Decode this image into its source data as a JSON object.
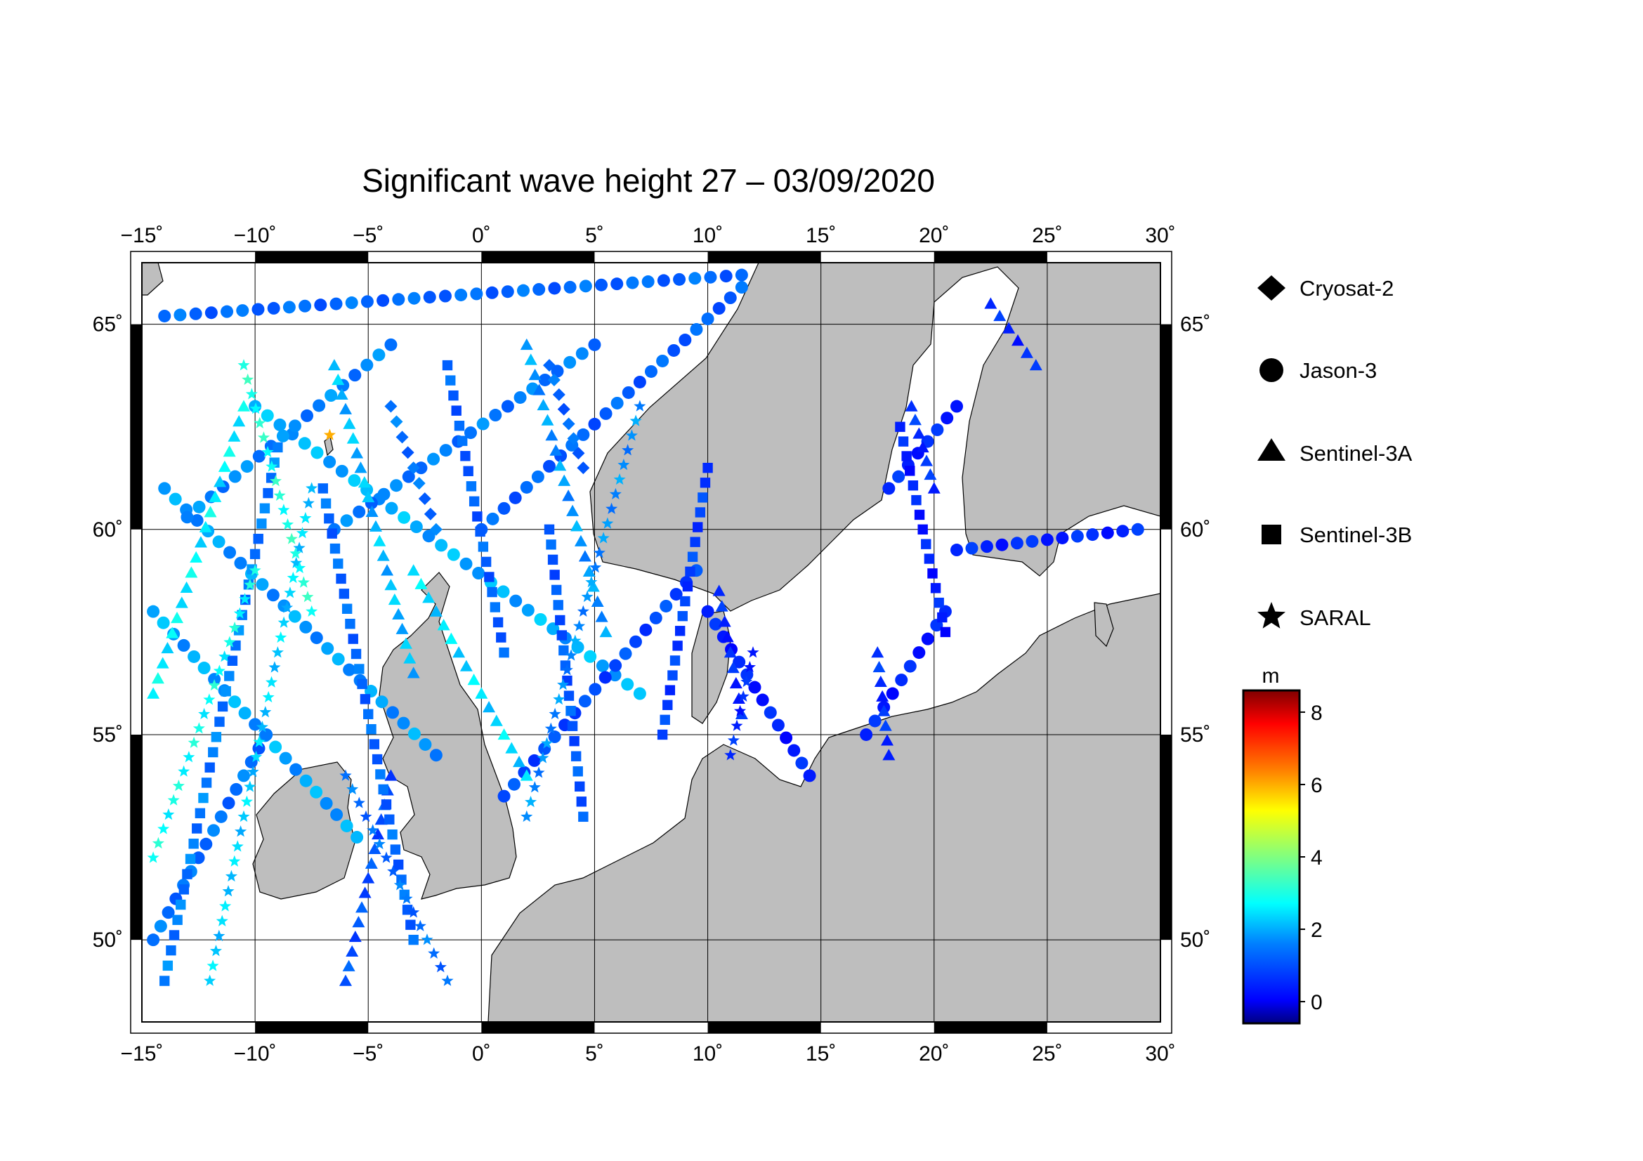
{
  "title": "Significant wave height 27 – 03/09/2020",
  "map": {
    "lon_range": [
      -15,
      30
    ],
    "lat_range": [
      48,
      66.5
    ],
    "lon_ticks": [
      {
        "value": -15,
        "label": "−15˚"
      },
      {
        "value": -10,
        "label": "−10˚"
      },
      {
        "value": -5,
        "label": "−5˚"
      },
      {
        "value": 0,
        "label": "0˚"
      },
      {
        "value": 5,
        "label": "5˚"
      },
      {
        "value": 10,
        "label": "10˚"
      },
      {
        "value": 15,
        "label": "15˚"
      },
      {
        "value": 20,
        "label": "20˚"
      },
      {
        "value": 25,
        "label": "25˚"
      },
      {
        "value": 30,
        "label": "30˚"
      }
    ],
    "lat_ticks": [
      {
        "value": 50,
        "label": "50˚"
      },
      {
        "value": 55,
        "label": "55˚"
      },
      {
        "value": 60,
        "label": "60˚"
      },
      {
        "value": 65,
        "label": "65˚"
      }
    ],
    "land_color": "#bebebe",
    "sea_color": "#ffffff",
    "grid": true
  },
  "legend": {
    "items": [
      {
        "label": "Cryosat-2",
        "marker": "diamond"
      },
      {
        "label": "Jason-3",
        "marker": "circle"
      },
      {
        "label": "Sentinel-3A",
        "marker": "triangle"
      },
      {
        "label": "Sentinel-3B",
        "marker": "square"
      },
      {
        "label": "SARAL",
        "marker": "star"
      }
    ]
  },
  "colorbar": {
    "unit": "m",
    "min": -0.6,
    "max": 8.6,
    "ticks": [
      {
        "value": 0,
        "label": "0"
      },
      {
        "value": 2,
        "label": "2"
      },
      {
        "value": 4,
        "label": "4"
      },
      {
        "value": 6,
        "label": "6"
      },
      {
        "value": 8,
        "label": "8"
      }
    ],
    "colors": [
      "#000080",
      "#0000ff",
      "#0080ff",
      "#00ffff",
      "#80ff80",
      "#ffff00",
      "#ff8000",
      "#ff0000",
      "#800000"
    ]
  },
  "chart_data": {
    "type": "scatter",
    "title": "Significant wave height 27 – 03/09/2020",
    "xlabel": "",
    "ylabel": "",
    "xlim": [
      -15,
      30
    ],
    "ylim": [
      48,
      66.5
    ],
    "color_unit": "m",
    "tracks": [
      {
        "satellite": "Jason-3",
        "marker": "circle",
        "from": [
          -14.5,
          58.0
        ],
        "to": [
          -5.5,
          52.5
        ],
        "swh": 1.9
      },
      {
        "satellite": "Jason-3",
        "marker": "circle",
        "from": [
          -14.0,
          61.0
        ],
        "to": [
          -2.0,
          54.5
        ],
        "swh": 1.8
      },
      {
        "satellite": "Jason-3",
        "marker": "circle",
        "from": [
          -10.0,
          63.0
        ],
        "to": [
          7.0,
          56.0
        ],
        "swh": 2.0
      },
      {
        "satellite": "Jason-3",
        "marker": "circle",
        "from": [
          -13.0,
          60.3
        ],
        "to": [
          -4.0,
          64.5
        ],
        "swh": 1.6
      },
      {
        "satellite": "Jason-3",
        "marker": "circle",
        "from": [
          -6.5,
          60.0
        ],
        "to": [
          5.0,
          64.5
        ],
        "swh": 1.5
      },
      {
        "satellite": "Jason-3",
        "marker": "circle",
        "from": [
          0.0,
          60.0
        ],
        "to": [
          11.5,
          65.9
        ],
        "swh": 1.2
      },
      {
        "satellite": "Jason-3",
        "marker": "circle",
        "from": [
          -14.0,
          65.2
        ],
        "to": [
          11.5,
          66.2
        ],
        "swh": 1.3
      },
      {
        "satellite": "Jason-3",
        "marker": "circle",
        "from": [
          -14.5,
          50.0
        ],
        "to": [
          -9.5,
          55.0
        ],
        "swh": 1.4
      },
      {
        "satellite": "Jason-3",
        "marker": "circle",
        "from": [
          1.0,
          53.5
        ],
        "to": [
          9.5,
          59.0
        ],
        "swh": 0.9
      },
      {
        "satellite": "Jason-3",
        "marker": "circle",
        "from": [
          10.0,
          58.0
        ],
        "to": [
          14.5,
          54.0
        ],
        "swh": 0.4
      },
      {
        "satellite": "Jason-3",
        "marker": "circle",
        "from": [
          17.0,
          55.0
        ],
        "to": [
          20.5,
          58.0
        ],
        "swh": 0.4
      },
      {
        "satellite": "Jason-3",
        "marker": "circle",
        "from": [
          18.0,
          61.0
        ],
        "to": [
          21.0,
          63.0
        ],
        "swh": 0.5
      },
      {
        "satellite": "Jason-3",
        "marker": "circle",
        "from": [
          21.0,
          59.5
        ],
        "to": [
          29.0,
          60.0
        ],
        "swh": 0.5
      },
      {
        "satellite": "Sentinel-3A",
        "marker": "triangle",
        "from": [
          -14.5,
          56.0
        ],
        "to": [
          -10.5,
          63.0
        ],
        "swh": 2.6
      },
      {
        "satellite": "Sentinel-3A",
        "marker": "triangle",
        "from": [
          -6.5,
          64.0
        ],
        "to": [
          -3.0,
          56.5
        ],
        "swh": 2.1
      },
      {
        "satellite": "Sentinel-3A",
        "marker": "triangle",
        "from": [
          2.0,
          64.5
        ],
        "to": [
          5.5,
          57.5
        ],
        "swh": 1.8
      },
      {
        "satellite": "Sentinel-3A",
        "marker": "triangle",
        "from": [
          -3.0,
          59.0
        ],
        "to": [
          2.0,
          54.0
        ],
        "swh": 2.4
      },
      {
        "satellite": "Sentinel-3A",
        "marker": "triangle",
        "from": [
          10.5,
          58.5
        ],
        "to": [
          11.5,
          55.5
        ],
        "swh": 0.5
      },
      {
        "satellite": "Sentinel-3A",
        "marker": "triangle",
        "from": [
          17.5,
          57.0
        ],
        "to": [
          18.0,
          54.5
        ],
        "swh": 0.6
      },
      {
        "satellite": "Sentinel-3A",
        "marker": "triangle",
        "from": [
          19.0,
          63.0
        ],
        "to": [
          20.0,
          61.0
        ],
        "swh": 0.6
      },
      {
        "satellite": "Sentinel-3A",
        "marker": "triangle",
        "from": [
          22.5,
          65.5
        ],
        "to": [
          24.5,
          64.0
        ],
        "swh": 0.5
      },
      {
        "satellite": "Sentinel-3A",
        "marker": "triangle",
        "from": [
          -6.0,
          49.0
        ],
        "to": [
          -4.0,
          54.0
        ],
        "swh": 1.0
      },
      {
        "satellite": "Sentinel-3B",
        "marker": "square",
        "from": [
          -14.0,
          49.0
        ],
        "to": [
          -9.0,
          62.0
        ],
        "swh": 1.5
      },
      {
        "satellite": "Sentinel-3B",
        "marker": "square",
        "from": [
          -7.0,
          61.0
        ],
        "to": [
          -3.0,
          50.0
        ],
        "swh": 1.3
      },
      {
        "satellite": "Sentinel-3B",
        "marker": "square",
        "from": [
          3.0,
          60.0
        ],
        "to": [
          4.5,
          53.0
        ],
        "swh": 1.1
      },
      {
        "satellite": "Sentinel-3B",
        "marker": "square",
        "from": [
          8.0,
          55.0
        ],
        "to": [
          10.0,
          61.5
        ],
        "swh": 0.8
      },
      {
        "satellite": "Sentinel-3B",
        "marker": "square",
        "from": [
          18.5,
          62.5
        ],
        "to": [
          20.5,
          57.5
        ],
        "swh": 0.4
      },
      {
        "satellite": "Sentinel-3B",
        "marker": "square",
        "from": [
          -1.5,
          64.0
        ],
        "to": [
          1.0,
          57.0
        ],
        "swh": 1.2
      },
      {
        "satellite": "SARAL",
        "marker": "star",
        "from": [
          -14.5,
          52.0
        ],
        "to": [
          -10.0,
          59.0
        ],
        "swh": 2.8
      },
      {
        "satellite": "SARAL",
        "marker": "star",
        "from": [
          -12.0,
          49.0
        ],
        "to": [
          -7.5,
          61.0
        ],
        "swh": 2.3
      },
      {
        "satellite": "SARAL",
        "marker": "star",
        "from": [
          -6.0,
          54.0
        ],
        "to": [
          -1.5,
          49.0
        ],
        "swh": 1.4
      },
      {
        "satellite": "SARAL",
        "marker": "star",
        "from": [
          2.0,
          53.0
        ],
        "to": [
          7.0,
          63.0
        ],
        "swh": 1.7
      },
      {
        "satellite": "SARAL",
        "marker": "star",
        "from": [
          11.0,
          54.5
        ],
        "to": [
          12.0,
          57.0
        ],
        "swh": 0.5
      },
      {
        "satellite": "SARAL",
        "marker": "star",
        "from": [
          -10.5,
          64.0
        ],
        "to": [
          -7.5,
          58.0
        ],
        "swh": 3.0
      },
      {
        "satellite": "Cryosat-2",
        "marker": "diamond",
        "from": [
          3.0,
          64.0
        ],
        "to": [
          4.5,
          61.5
        ],
        "swh": 1.3
      },
      {
        "satellite": "Cryosat-2",
        "marker": "diamond",
        "from": [
          -4.0,
          63.0
        ],
        "to": [
          -2.0,
          60.0
        ],
        "swh": 1.4
      }
    ],
    "highlight_point": {
      "satellite": "SARAL",
      "lon": -6.7,
      "lat": 62.3,
      "swh": 6.0
    }
  }
}
